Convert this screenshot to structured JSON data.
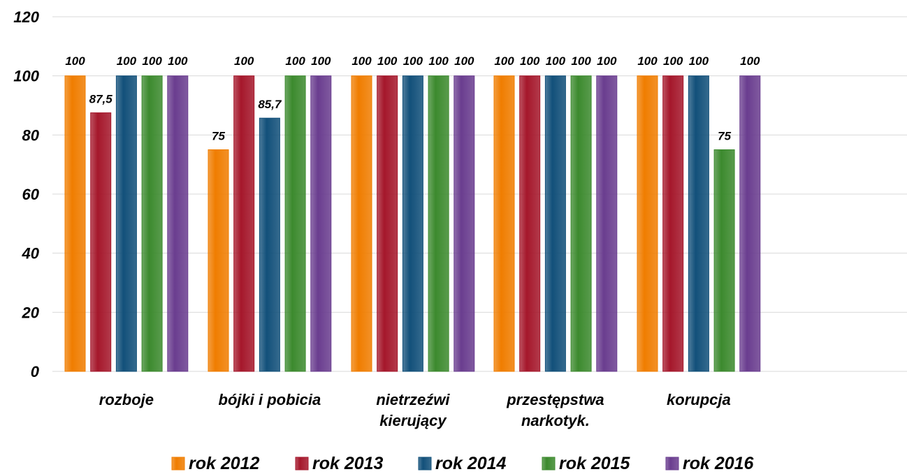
{
  "chart_data": {
    "type": "bar",
    "title": "",
    "xlabel": "",
    "ylabel": "",
    "ylim": [
      0,
      120
    ],
    "yticks": [
      0,
      20,
      40,
      60,
      80,
      100,
      120
    ],
    "grid": true,
    "legend_position": "bottom",
    "categories": [
      [
        "rozboje"
      ],
      [
        "bójki i pobicia"
      ],
      [
        "nietrzeźwi",
        "kierujący"
      ],
      [
        "przestępstwa",
        "narkotyk."
      ],
      [
        "korupcja"
      ]
    ],
    "series": [
      {
        "name": "rok 2012",
        "color": "#f07d00",
        "values": [
          100,
          75,
          100,
          100,
          100
        ],
        "labels": [
          "100",
          "75",
          "100",
          "100",
          "100"
        ]
      },
      {
        "name": "rok 2013",
        "color": "#a5172b",
        "values": [
          87.5,
          100,
          100,
          100,
          100
        ],
        "labels": [
          "87,5",
          "100",
          "100",
          "100",
          "100"
        ]
      },
      {
        "name": "rok 2014",
        "color": "#12507a",
        "values": [
          100,
          85.7,
          100,
          100,
          100
        ],
        "labels": [
          "100",
          "85,7",
          "100",
          "100",
          "100"
        ]
      },
      {
        "name": "rok 2015",
        "color": "#3c8a2e",
        "values": [
          100,
          100,
          100,
          100,
          75
        ],
        "labels": [
          "100",
          "100",
          "100",
          "100",
          "75"
        ]
      },
      {
        "name": "rok 2016",
        "color": "#6a3d8f",
        "values": [
          100,
          100,
          100,
          100,
          100
        ],
        "labels": [
          "100",
          "100",
          "100",
          "100",
          "100"
        ]
      }
    ]
  }
}
